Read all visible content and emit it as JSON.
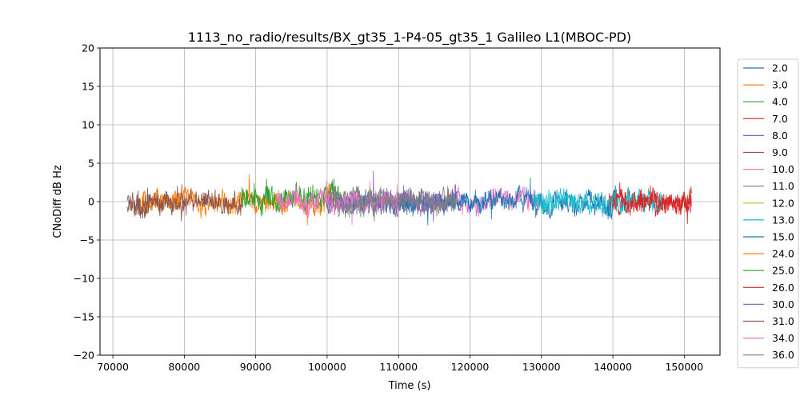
{
  "chart_data": {
    "type": "line",
    "title": "1113_no_radio/results/BX_gt35_1-P4-05_gt35_1 Galileo L1(MBOC-PD)",
    "xlabel": "Time (s)",
    "ylabel": "CNoDiff dB Hz",
    "xlim": [
      68200,
      155000
    ],
    "ylim": [
      -20,
      20
    ],
    "xticks": [
      70000,
      80000,
      90000,
      100000,
      110000,
      120000,
      130000,
      140000,
      150000
    ],
    "yticks": [
      -20,
      -15,
      -10,
      -5,
      0,
      5,
      10,
      15,
      20
    ],
    "grid": true,
    "legend_position": "outside-right",
    "series": [
      {
        "name": "2.0",
        "color": "#1f77b4",
        "x_start": 128500,
        "x_end": 140500,
        "amplitude": 1.1,
        "offset": -0.3
      },
      {
        "name": "3.0",
        "color": "#ff7f0e",
        "x_start": 0,
        "x_end": 0,
        "amplitude": 0,
        "offset": 0
      },
      {
        "name": "4.0",
        "color": "#2ca02c",
        "x_start": 101000,
        "x_end": 110000,
        "amplitude": 1.2,
        "offset": 0.3
      },
      {
        "name": "7.0",
        "color": "#d62728",
        "x_start": 139500,
        "x_end": 151000,
        "amplitude": 1.2,
        "offset": 0.0
      },
      {
        "name": "8.0",
        "color": "#9467bd",
        "x_start": 108000,
        "x_end": 119000,
        "amplitude": 1.2,
        "offset": 0.0
      },
      {
        "name": "9.0",
        "color": "#8c564b",
        "x_start": 72000,
        "x_end": 80000,
        "amplitude": 1.1,
        "offset": -0.1
      },
      {
        "name": "10.0",
        "color": "#e377c2",
        "x_start": 117000,
        "x_end": 129500,
        "amplitude": 1.2,
        "offset": 0.1
      },
      {
        "name": "11.0",
        "color": "#7f7f7f",
        "x_start": 100000,
        "x_end": 118000,
        "amplitude": 1.0,
        "offset": 0.0
      },
      {
        "name": "12.0",
        "color": "#bcbd22",
        "x_start": 0,
        "x_end": 0,
        "amplitude": 0,
        "offset": 0
      },
      {
        "name": "13.0",
        "color": "#17becf",
        "x_start": 129000,
        "x_end": 147000,
        "amplitude": 1.2,
        "offset": 0.0
      },
      {
        "name": "15.0",
        "color": "#1f77b4",
        "x_start": 100000,
        "x_end": 129000,
        "amplitude": 1.0,
        "offset": 0.2
      },
      {
        "name": "24.0",
        "color": "#ff7f0e",
        "x_start": 74000,
        "x_end": 101000,
        "amplitude": 1.1,
        "offset": 0.0
      },
      {
        "name": "25.0",
        "color": "#2ca02c",
        "x_start": 88000,
        "x_end": 101000,
        "amplitude": 1.3,
        "offset": 0.4
      },
      {
        "name": "26.0",
        "color": "#d62728",
        "x_start": 140000,
        "x_end": 151000,
        "amplitude": 1.2,
        "offset": 0.0
      },
      {
        "name": "30.0",
        "color": "#9467bd",
        "x_start": 100000,
        "x_end": 116000,
        "amplitude": 1.0,
        "offset": 0.0
      },
      {
        "name": "31.0",
        "color": "#8c564b",
        "x_start": 72000,
        "x_end": 88000,
        "amplitude": 1.1,
        "offset": -0.2
      },
      {
        "name": "34.0",
        "color": "#e377c2",
        "x_start": 93000,
        "x_end": 110000,
        "amplitude": 1.1,
        "offset": 0.0
      },
      {
        "name": "36.0",
        "color": "#7f7f7f",
        "x_start": 101000,
        "x_end": 118000,
        "amplitude": 1.0,
        "offset": 0.0
      }
    ]
  }
}
